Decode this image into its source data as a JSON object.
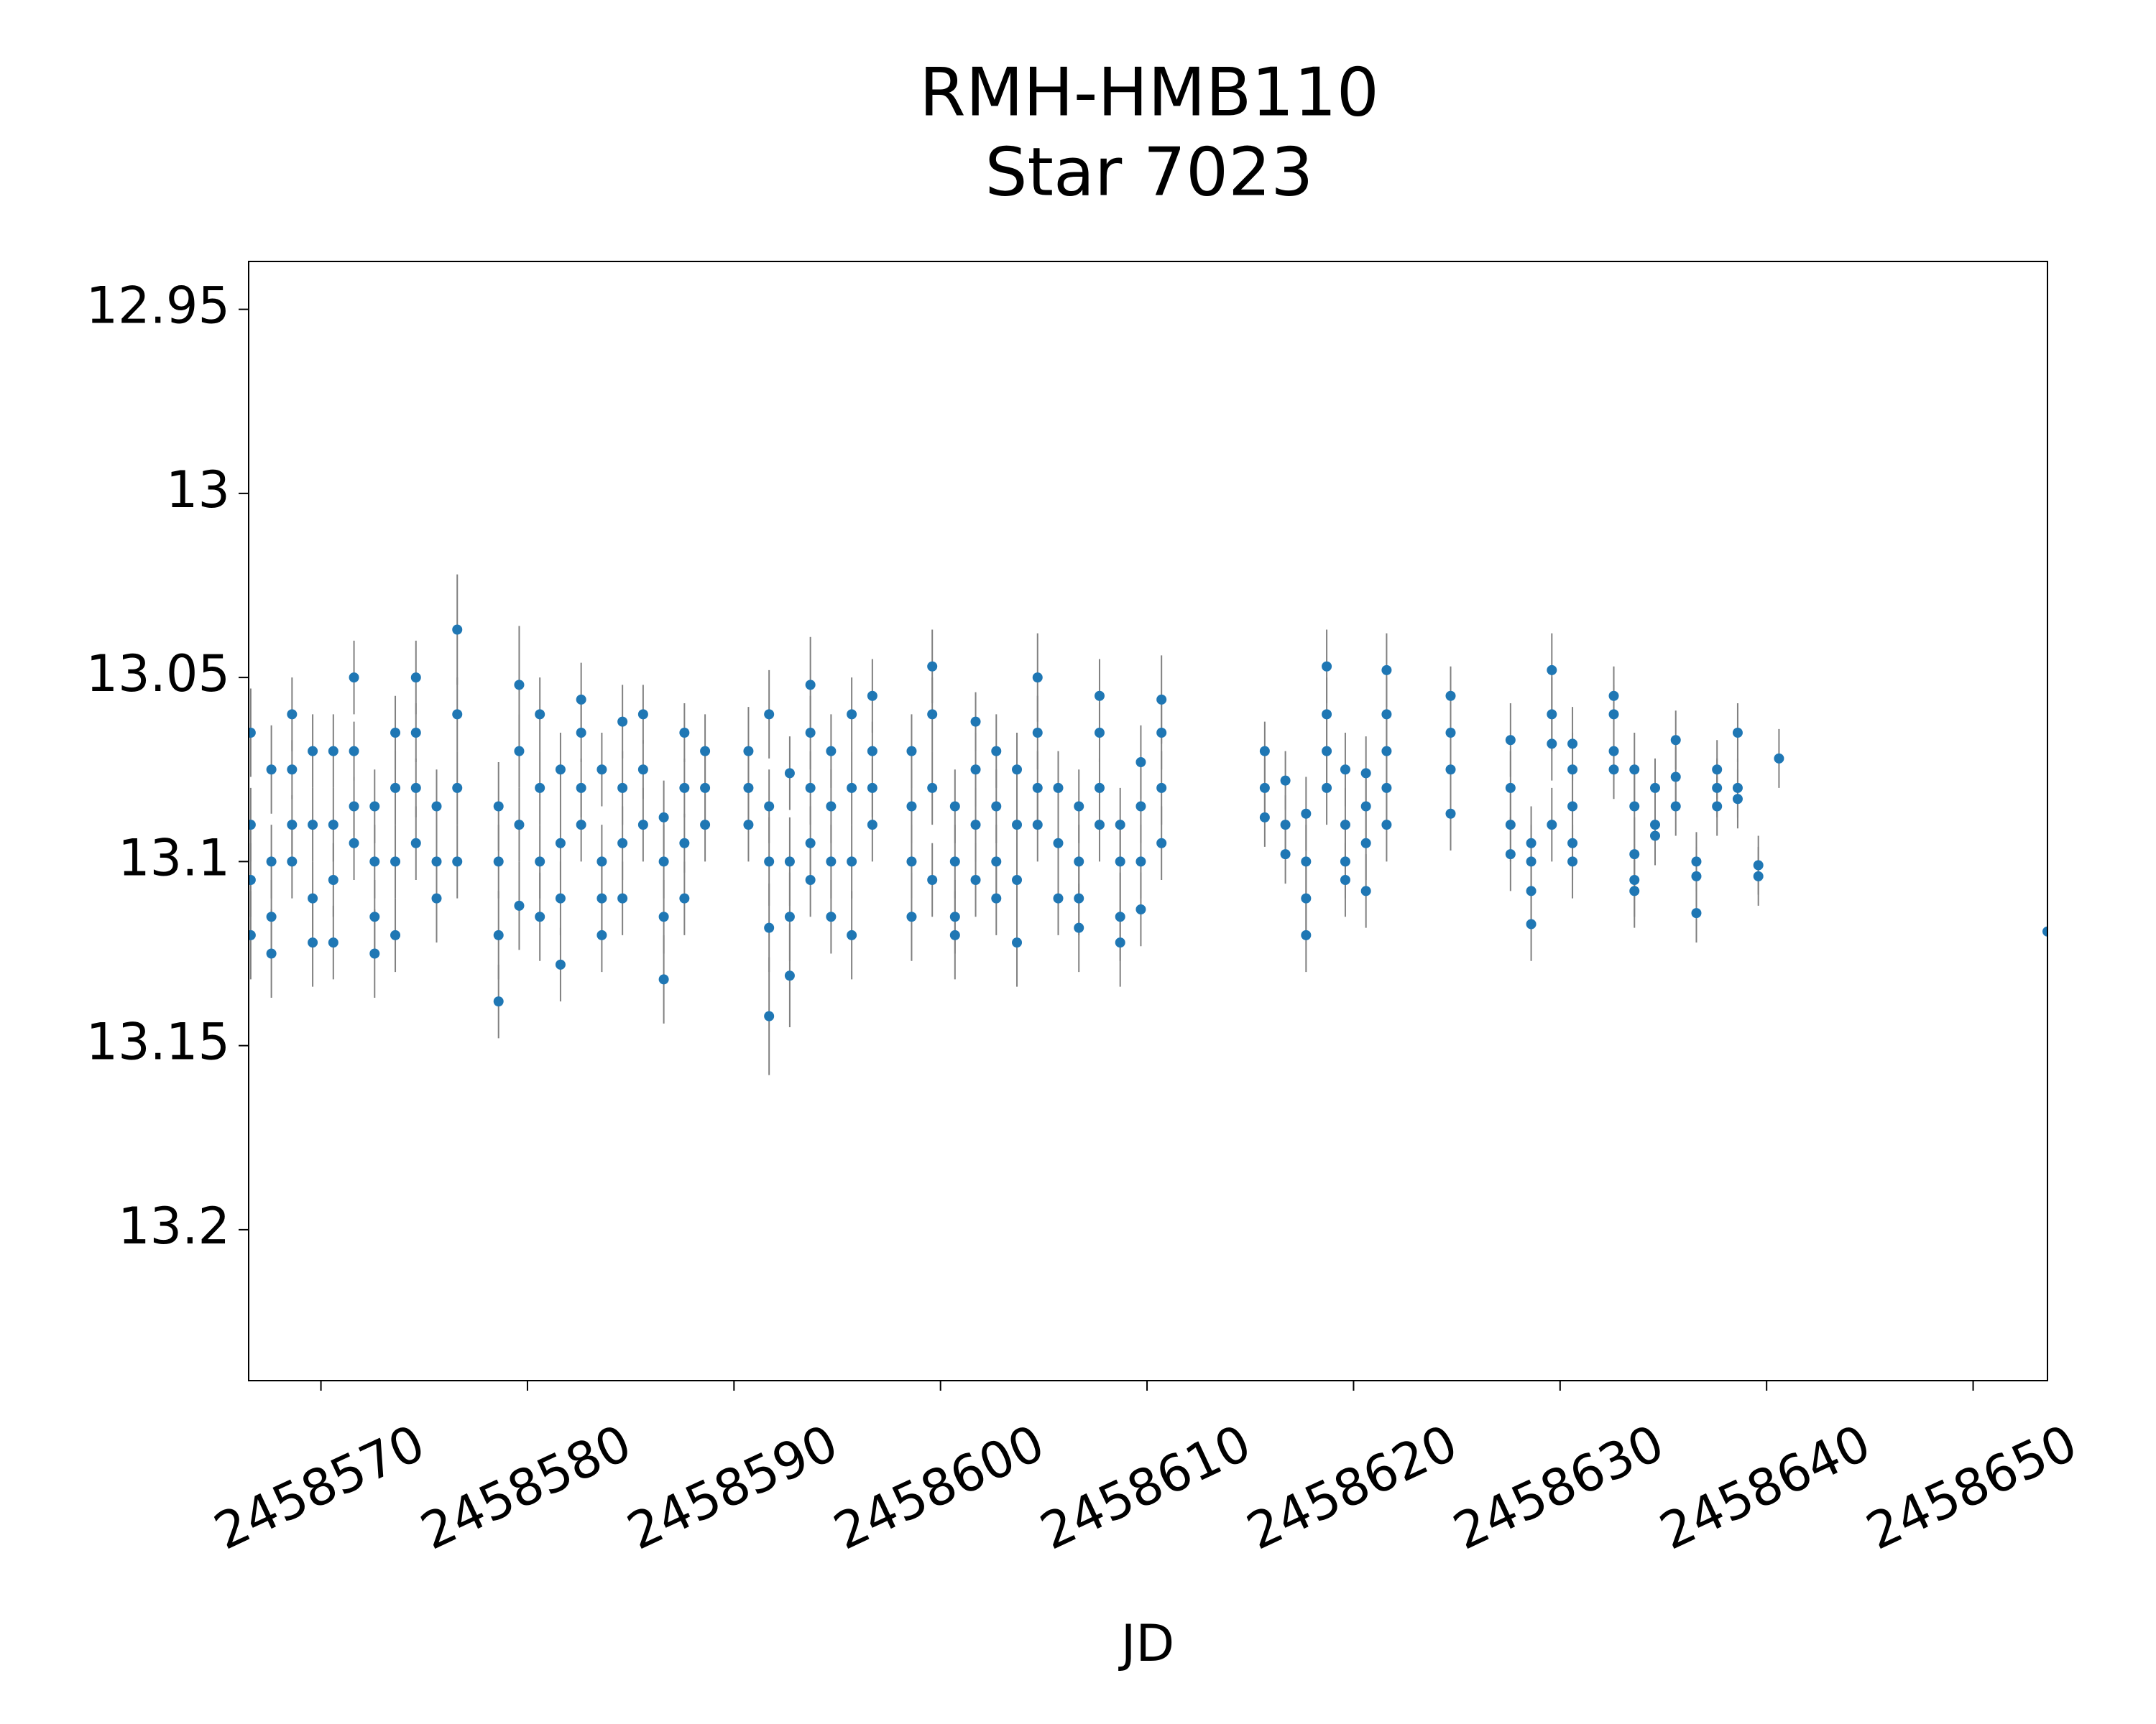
{
  "chart_data": {
    "type": "scatter",
    "title": [
      "RMH-HMB110",
      "Star 7023"
    ],
    "x_label": "JD",
    "xlim": [
      2458566.5,
      2458653.6
    ],
    "ylim": [
      13.241,
      12.937
    ],
    "xticks": [
      2458570,
      2458580,
      2458590,
      2458600,
      2458610,
      2458620,
      2458630,
      2458640,
      2458650
    ],
    "yticks": [
      12.95,
      13.0,
      13.05,
      13.1,
      13.15,
      13.2
    ],
    "marker_color": "#1f77b4",
    "error_color": "#808080",
    "x": [
      2458566.6,
      2458566.6,
      2458566.6,
      2458566.6,
      2458567.6,
      2458567.6,
      2458567.6,
      2458567.6,
      2458568.6,
      2458568.6,
      2458568.6,
      2458568.6,
      2458569.6,
      2458569.6,
      2458569.6,
      2458569.6,
      2458570.6,
      2458570.6,
      2458570.6,
      2458570.6,
      2458571.6,
      2458571.6,
      2458571.6,
      2458571.6,
      2458572.6,
      2458572.6,
      2458572.6,
      2458572.6,
      2458573.6,
      2458573.6,
      2458573.6,
      2458573.6,
      2458574.6,
      2458574.6,
      2458574.6,
      2458574.6,
      2458575.6,
      2458575.6,
      2458575.6,
      2458576.6,
      2458576.6,
      2458576.6,
      2458576.6,
      2458578.6,
      2458578.6,
      2458578.6,
      2458578.6,
      2458579.6,
      2458579.6,
      2458579.6,
      2458579.6,
      2458580.6,
      2458580.6,
      2458580.6,
      2458580.6,
      2458581.6,
      2458581.6,
      2458581.6,
      2458581.6,
      2458582.6,
      2458582.6,
      2458582.6,
      2458582.6,
      2458583.6,
      2458583.6,
      2458583.6,
      2458583.6,
      2458584.6,
      2458584.6,
      2458584.6,
      2458584.6,
      2458585.6,
      2458585.6,
      2458585.6,
      2458586.6,
      2458586.6,
      2458586.6,
      2458586.6,
      2458587.6,
      2458587.6,
      2458587.6,
      2458587.6,
      2458588.6,
      2458588.6,
      2458588.6,
      2458590.7,
      2458590.7,
      2458590.7,
      2458591.7,
      2458591.7,
      2458591.7,
      2458591.7,
      2458591.7,
      2458592.7,
      2458592.7,
      2458592.7,
      2458592.7,
      2458593.7,
      2458593.7,
      2458593.7,
      2458593.7,
      2458593.7,
      2458594.7,
      2458594.7,
      2458594.7,
      2458594.7,
      2458595.7,
      2458595.7,
      2458595.7,
      2458595.7,
      2458596.7,
      2458596.7,
      2458596.7,
      2458596.7,
      2458598.6,
      2458598.6,
      2458598.6,
      2458598.6,
      2458599.6,
      2458599.6,
      2458599.6,
      2458599.6,
      2458600.7,
      2458600.7,
      2458600.7,
      2458600.7,
      2458601.7,
      2458601.7,
      2458601.7,
      2458601.7,
      2458602.7,
      2458602.7,
      2458602.7,
      2458602.7,
      2458603.7,
      2458603.7,
      2458603.7,
      2458603.7,
      2458604.7,
      2458604.7,
      2458604.7,
      2458604.7,
      2458605.7,
      2458605.7,
      2458605.7,
      2458606.7,
      2458606.7,
      2458606.7,
      2458606.7,
      2458607.7,
      2458607.7,
      2458607.7,
      2458607.7,
      2458608.7,
      2458608.7,
      2458608.7,
      2458608.7,
      2458609.7,
      2458609.7,
      2458609.7,
      2458609.7,
      2458610.7,
      2458610.7,
      2458610.7,
      2458610.7,
      2458615.7,
      2458615.7,
      2458615.7,
      2458616.7,
      2458616.7,
      2458616.7,
      2458617.7,
      2458617.7,
      2458617.7,
      2458617.7,
      2458618.7,
      2458618.7,
      2458618.7,
      2458618.7,
      2458619.6,
      2458619.6,
      2458619.6,
      2458619.6,
      2458620.6,
      2458620.6,
      2458620.6,
      2458620.6,
      2458621.6,
      2458621.6,
      2458621.6,
      2458621.6,
      2458621.6,
      2458624.7,
      2458624.7,
      2458624.7,
      2458624.7,
      2458627.6,
      2458627.6,
      2458627.6,
      2458627.6,
      2458628.6,
      2458628.6,
      2458628.6,
      2458628.6,
      2458629.6,
      2458629.6,
      2458629.6,
      2458629.6,
      2458630.6,
      2458630.6,
      2458630.6,
      2458630.6,
      2458630.6,
      2458632.6,
      2458632.6,
      2458632.6,
      2458632.6,
      2458633.6,
      2458633.6,
      2458633.6,
      2458633.6,
      2458633.6,
      2458634.6,
      2458634.6,
      2458634.6,
      2458635.6,
      2458635.6,
      2458635.6,
      2458636.6,
      2458636.6,
      2458636.6,
      2458637.6,
      2458637.6,
      2458637.6,
      2458638.6,
      2458638.6,
      2458638.6,
      2458639.6,
      2458639.6,
      2458640.6,
      2458653.6
    ],
    "values": [
      13.065,
      13.09,
      13.105,
      13.12,
      13.075,
      13.1,
      13.115,
      13.125,
      13.06,
      13.075,
      13.09,
      13.1,
      13.07,
      13.09,
      13.11,
      13.122,
      13.07,
      13.09,
      13.105,
      13.122,
      13.05,
      13.07,
      13.085,
      13.095,
      13.085,
      13.1,
      13.115,
      13.125,
      13.065,
      13.08,
      13.1,
      13.12,
      13.05,
      13.065,
      13.08,
      13.095,
      13.085,
      13.1,
      13.11,
      13.037,
      13.06,
      13.08,
      13.1,
      13.085,
      13.1,
      13.12,
      13.138,
      13.052,
      13.07,
      13.09,
      13.112,
      13.06,
      13.08,
      13.1,
      13.115,
      13.075,
      13.095,
      13.11,
      13.128,
      13.056,
      13.065,
      13.08,
      13.09,
      13.075,
      13.1,
      13.11,
      13.12,
      13.062,
      13.08,
      13.095,
      13.11,
      13.06,
      13.075,
      13.09,
      13.088,
      13.1,
      13.115,
      13.132,
      13.065,
      13.08,
      13.095,
      13.11,
      13.07,
      13.08,
      13.09,
      13.07,
      13.08,
      13.09,
      13.06,
      13.085,
      13.1,
      13.118,
      13.142,
      13.076,
      13.1,
      13.115,
      13.131,
      13.052,
      13.065,
      13.08,
      13.095,
      13.105,
      13.07,
      13.085,
      13.1,
      13.115,
      13.06,
      13.08,
      13.1,
      13.12,
      13.055,
      13.07,
      13.08,
      13.09,
      13.07,
      13.085,
      13.1,
      13.115,
      13.047,
      13.06,
      13.08,
      13.105,
      13.085,
      13.1,
      13.115,
      13.12,
      13.062,
      13.075,
      13.09,
      13.105,
      13.07,
      13.085,
      13.1,
      13.11,
      13.075,
      13.09,
      13.105,
      13.122,
      13.05,
      13.065,
      13.08,
      13.09,
      13.08,
      13.095,
      13.11,
      13.085,
      13.1,
      13.11,
      13.118,
      13.055,
      13.065,
      13.08,
      13.09,
      13.09,
      13.1,
      13.115,
      13.122,
      13.073,
      13.085,
      13.1,
      13.113,
      13.056,
      13.065,
      13.08,
      13.095,
      13.07,
      13.08,
      13.088,
      13.078,
      13.09,
      13.098,
      13.087,
      13.1,
      13.11,
      13.12,
      13.047,
      13.06,
      13.07,
      13.08,
      13.075,
      13.09,
      13.1,
      13.105,
      13.076,
      13.085,
      13.095,
      13.108,
      13.048,
      13.06,
      13.07,
      13.08,
      13.09,
      13.055,
      13.065,
      13.075,
      13.087,
      13.067,
      13.08,
      13.09,
      13.098,
      13.095,
      13.1,
      13.108,
      13.117,
      13.048,
      13.06,
      13.068,
      13.09,
      13.068,
      13.075,
      13.085,
      13.095,
      13.1,
      13.055,
      13.06,
      13.07,
      13.075,
      13.075,
      13.085,
      13.098,
      13.105,
      13.108,
      13.08,
      13.09,
      13.093,
      13.067,
      13.077,
      13.085,
      13.1,
      13.104,
      13.114,
      13.075,
      13.08,
      13.085,
      13.065,
      13.08,
      13.083,
      13.101,
      13.104,
      13.072,
      13.119
    ],
    "errors": [
      0.012,
      0.01,
      0.01,
      0.012,
      0.012,
      0.01,
      0.01,
      0.012,
      0.01,
      0.008,
      0.008,
      0.01,
      0.01,
      0.01,
      0.01,
      0.012,
      0.01,
      0.01,
      0.01,
      0.01,
      0.01,
      0.008,
      0.008,
      0.01,
      0.01,
      0.01,
      0.01,
      0.012,
      0.01,
      0.01,
      0.01,
      0.01,
      0.01,
      0.008,
      0.008,
      0.01,
      0.01,
      0.01,
      0.012,
      0.015,
      0.01,
      0.01,
      0.01,
      0.012,
      0.01,
      0.012,
      0.01,
      0.016,
      0.01,
      0.01,
      0.012,
      0.01,
      0.01,
      0.01,
      0.012,
      0.01,
      0.01,
      0.01,
      0.01,
      0.01,
      0.008,
      0.008,
      0.01,
      0.01,
      0.01,
      0.01,
      0.01,
      0.01,
      0.01,
      0.01,
      0.01,
      0.008,
      0.008,
      0.01,
      0.01,
      0.01,
      0.01,
      0.012,
      0.008,
      0.008,
      0.008,
      0.01,
      0.01,
      0.01,
      0.01,
      0.012,
      0.01,
      0.01,
      0.012,
      0.01,
      0.012,
      0.012,
      0.016,
      0.01,
      0.012,
      0.012,
      0.014,
      0.013,
      0.01,
      0.01,
      0.01,
      0.01,
      0.01,
      0.01,
      0.01,
      0.01,
      0.01,
      0.01,
      0.01,
      0.012,
      0.01,
      0.008,
      0.008,
      0.01,
      0.01,
      0.01,
      0.01,
      0.012,
      0.01,
      0.01,
      0.01,
      0.01,
      0.01,
      0.01,
      0.01,
      0.012,
      0.008,
      0.01,
      0.01,
      0.01,
      0.01,
      0.01,
      0.01,
      0.01,
      0.01,
      0.01,
      0.01,
      0.012,
      0.012,
      0.01,
      0.01,
      0.01,
      0.01,
      0.01,
      0.01,
      0.01,
      0.01,
      0.01,
      0.012,
      0.01,
      0.008,
      0.008,
      0.01,
      0.01,
      0.01,
      0.012,
      0.012,
      0.01,
      0.01,
      0.01,
      0.01,
      0.012,
      0.01,
      0.01,
      0.01,
      0.008,
      0.008,
      0.008,
      0.008,
      0.008,
      0.008,
      0.01,
      0.01,
      0.01,
      0.01,
      0.01,
      0.01,
      0.01,
      0.01,
      0.01,
      0.01,
      0.01,
      0.01,
      0.01,
      0.01,
      0.01,
      0.01,
      0.01,
      0.01,
      0.01,
      0.01,
      0.01,
      0.008,
      0.008,
      0.008,
      0.01,
      0.01,
      0.01,
      0.01,
      0.01,
      0.01,
      0.01,
      0.01,
      0.01,
      0.01,
      0.01,
      0.01,
      0.01,
      0.01,
      0.01,
      0.01,
      0.01,
      0.01,
      0.008,
      0.008,
      0.008,
      0.008,
      0.01,
      0.01,
      0.01,
      0.01,
      0.01,
      0.008,
      0.008,
      0.008,
      0.008,
      0.008,
      0.008,
      0.008,
      0.008,
      0.008,
      0.008,
      0.008,
      0.008,
      0.008,
      0.008,
      0.008,
      0.008,
      0.008,
      0.008,
      0.008
    ]
  }
}
